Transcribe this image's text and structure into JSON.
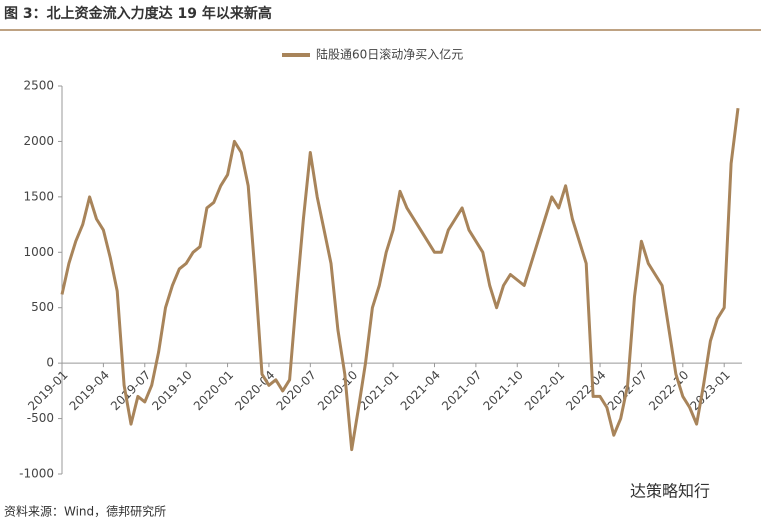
{
  "chart_data": {
    "type": "line",
    "title": "图 3：北上资金流入力度达 19 年以来新高",
    "source": "资料来源：Wind，德邦研究所",
    "watermark": "达策略知行",
    "categories": [
      "2019-01",
      null,
      null,
      null,
      null,
      null,
      "2019-04",
      null,
      null,
      null,
      null,
      null,
      "2019-07",
      null,
      null,
      null,
      null,
      null,
      "2019-10",
      null,
      null,
      null,
      null,
      null,
      "2020-01",
      null,
      null,
      null,
      null,
      null,
      "2020-04",
      null,
      null,
      null,
      null,
      null,
      "2020-07",
      null,
      null,
      null,
      null,
      null,
      "2020-10",
      null,
      null,
      null,
      null,
      null,
      "2021-01",
      null,
      null,
      null,
      null,
      null,
      "2021-04",
      null,
      null,
      null,
      null,
      null,
      "2021-07",
      null,
      null,
      null,
      null,
      null,
      "2021-10",
      null,
      null,
      null,
      null,
      null,
      "2022-01",
      null,
      null,
      null,
      null,
      null,
      "2022-04",
      null,
      null,
      null,
      null,
      null,
      "2022-07",
      null,
      null,
      null,
      null,
      null,
      "2022-10",
      null,
      null,
      null,
      null,
      null,
      "2023-01",
      null,
      null
    ],
    "series": [
      {
        "name": "陆股通60日滚动净买入亿元",
        "color": "#a8845a",
        "values": [
          620,
          900,
          1100,
          1250,
          1500,
          1300,
          1200,
          950,
          650,
          -200,
          -550,
          -300,
          -350,
          -200,
          100,
          500,
          700,
          850,
          900,
          1000,
          1050,
          1400,
          1450,
          1600,
          1700,
          2000,
          1900,
          1600,
          800,
          -100,
          -200,
          -150,
          -250,
          -150,
          600,
          1300,
          1900,
          1500,
          1200,
          900,
          300,
          -100,
          -780,
          -400,
          0,
          500,
          700,
          1000,
          1200,
          1550,
          1400,
          1300,
          1200,
          1100,
          1000,
          1000,
          1200,
          1300,
          1400,
          1200,
          1100,
          1000,
          700,
          500,
          700,
          800,
          750,
          700,
          900,
          1100,
          1300,
          1500,
          1400,
          1600,
          1300,
          1100,
          900,
          -300,
          -300,
          -400,
          -650,
          -500,
          -200,
          600,
          1100,
          900,
          800,
          700,
          300,
          -100,
          -300,
          -400,
          -550,
          -200,
          200,
          400,
          500,
          1800,
          2300
        ]
      }
    ],
    "ylim": [
      -1000,
      2500
    ],
    "yticks": [
      -1000,
      -500,
      0,
      500,
      1000,
      1500,
      2000,
      2500
    ],
    "grid": false,
    "legend": "top"
  }
}
